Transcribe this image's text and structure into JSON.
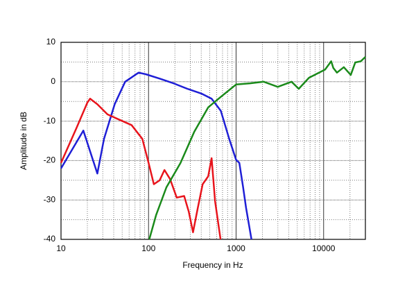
{
  "chart_data": {
    "type": "line",
    "xlabel": "Frequency in Hz",
    "ylabel": "Amplitude in dB",
    "xscale": "log",
    "grid": true,
    "xlim": [
      10,
      30000
    ],
    "ylim": [
      -40,
      10
    ],
    "xticks": [
      10,
      100,
      1000,
      10000
    ],
    "yticks": [
      10,
      0,
      -10,
      -20,
      -30,
      -40
    ],
    "xminorticks": [
      20,
      30,
      40,
      50,
      60,
      70,
      80,
      90,
      200,
      300,
      400,
      500,
      600,
      700,
      800,
      900,
      2000,
      3000,
      4000,
      5000,
      6000,
      7000,
      8000,
      9000,
      20000
    ],
    "yminorticks": [
      5,
      -5,
      -15,
      -25,
      -35
    ],
    "series": [
      {
        "color": "#1f1fd6",
        "x": [
          10,
          18,
          26,
          31,
          41,
          54,
          77,
          93,
          134,
          193,
          278,
          400,
          525,
          670,
          835,
          1000,
          1090,
          1200,
          1300,
          1500
        ],
        "values": [
          -22,
          -12.4,
          -23.3,
          -14.5,
          -5.7,
          0,
          2.3,
          1.9,
          0.8,
          -0.4,
          -1.8,
          -3,
          -4.3,
          -7.4,
          -14.5,
          -19.8,
          -20.6,
          -26.6,
          -32,
          -40
        ]
      },
      {
        "color": "#e8141c",
        "x": [
          10,
          15,
          20,
          21.5,
          26,
          34,
          45,
          64,
          85,
          100,
          115,
          134,
          152,
          176,
          210,
          255,
          288,
          322,
          365,
          415,
          480,
          525,
          575,
          665
        ],
        "values": [
          -20.6,
          -11.8,
          -5.3,
          -4.3,
          -5.7,
          -8.3,
          -9.5,
          -11,
          -14.5,
          -20.6,
          -26,
          -25,
          -22.4,
          -24.7,
          -29.4,
          -29,
          -33,
          -38.2,
          -32.1,
          -26,
          -24,
          -19.4,
          -30.3,
          -40
        ]
      },
      {
        "color": "#1a8a1a",
        "x": [
          102,
          122,
          160,
          232,
          333,
          480,
          690,
          1000,
          1440,
          2070,
          2990,
          4300,
          5200,
          6800,
          10400,
          12200,
          12900,
          14200,
          17000,
          20400,
          23000,
          26600,
          30000
        ],
        "values": [
          -40,
          -33.8,
          -26.8,
          -20.6,
          -12.7,
          -6.5,
          -3.6,
          -0.7,
          -0.4,
          0,
          -1.3,
          0,
          -1.8,
          1,
          3.1,
          5.2,
          3.5,
          2.3,
          3.7,
          1.7,
          4.9,
          5.2,
          6.3
        ]
      }
    ]
  }
}
